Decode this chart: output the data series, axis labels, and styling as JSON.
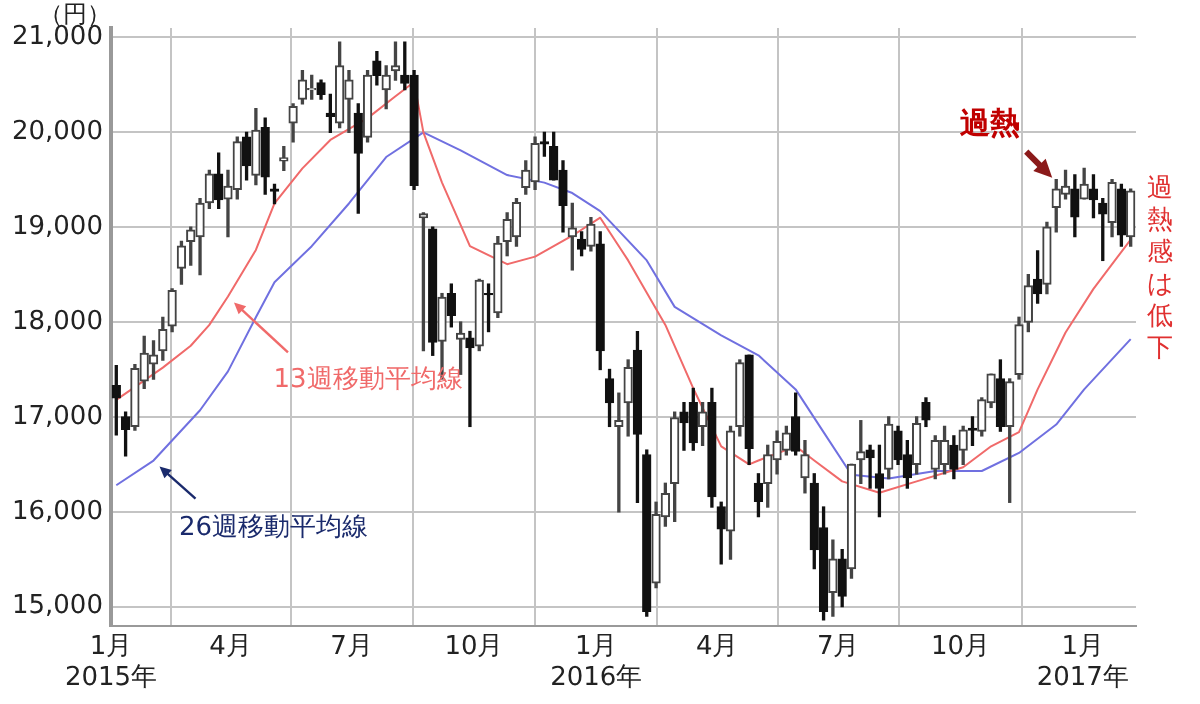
{
  "chart_data": {
    "type": "candlestick",
    "ylabel": "（円）",
    "x": [
      "2015-01-05",
      "2015-01-12",
      "2015-01-19",
      "2015-01-26",
      "2015-02-02",
      "2015-02-09",
      "2015-02-16",
      "2015-02-23",
      "2015-03-02",
      "2015-03-09",
      "2015-03-16",
      "2015-03-23",
      "2015-03-30",
      "2015-04-06",
      "2015-04-13",
      "2015-04-20",
      "2015-04-27",
      "2015-05-04",
      "2015-05-11",
      "2015-05-18",
      "2015-05-25",
      "2015-06-01",
      "2015-06-08",
      "2015-06-15",
      "2015-06-22",
      "2015-06-29",
      "2015-07-06",
      "2015-07-13",
      "2015-07-20",
      "2015-07-27",
      "2015-08-03",
      "2015-08-10",
      "2015-08-17",
      "2015-08-24",
      "2015-08-31",
      "2015-09-07",
      "2015-09-14",
      "2015-09-21",
      "2015-09-28",
      "2015-10-05",
      "2015-10-12",
      "2015-10-19",
      "2015-10-26",
      "2015-11-02",
      "2015-11-09",
      "2015-11-16",
      "2015-11-23",
      "2015-11-30",
      "2015-12-07",
      "2015-12-14",
      "2015-12-21",
      "2015-12-28",
      "2016-01-04",
      "2016-01-11",
      "2016-01-18",
      "2016-01-25",
      "2016-02-01",
      "2016-02-08",
      "2016-02-15",
      "2016-02-22",
      "2016-02-29",
      "2016-03-07",
      "2016-03-14",
      "2016-03-21",
      "2016-03-28",
      "2016-04-04",
      "2016-04-11",
      "2016-04-18",
      "2016-04-25",
      "2016-05-02",
      "2016-05-09",
      "2016-05-16",
      "2016-05-23",
      "2016-05-30",
      "2016-06-06",
      "2016-06-13",
      "2016-06-20",
      "2016-06-27",
      "2016-07-04",
      "2016-07-11",
      "2016-07-18",
      "2016-07-25",
      "2016-08-01",
      "2016-08-08",
      "2016-08-15",
      "2016-08-22",
      "2016-08-29",
      "2016-09-05",
      "2016-09-12",
      "2016-09-19",
      "2016-09-26",
      "2016-10-03",
      "2016-10-10",
      "2016-10-17",
      "2016-10-24",
      "2016-10-31",
      "2016-11-07",
      "2016-11-14",
      "2016-11-21",
      "2016-11-28",
      "2016-12-05",
      "2016-12-12",
      "2016-12-19",
      "2016-12-26",
      "2017-01-02",
      "2017-01-09",
      "2017-01-16",
      "2017-01-23",
      "2017-01-30",
      "2017-02-06"
    ],
    "ohlc": [
      [
        17330,
        17540,
        16810,
        17200
      ],
      [
        17000,
        17050,
        16590,
        16870
      ],
      [
        16900,
        17550,
        16860,
        17510
      ],
      [
        17380,
        17850,
        17300,
        17670
      ],
      [
        17560,
        17800,
        17400,
        17650
      ],
      [
        17700,
        18050,
        17600,
        17920
      ],
      [
        17960,
        18350,
        17900,
        18330
      ],
      [
        18570,
        18850,
        18400,
        18800
      ],
      [
        18850,
        19000,
        18600,
        18970
      ],
      [
        18900,
        19300,
        18500,
        19250
      ],
      [
        19260,
        19600,
        19200,
        19560
      ],
      [
        19560,
        19780,
        19200,
        19290
      ],
      [
        19300,
        19600,
        18900,
        19430
      ],
      [
        19400,
        19950,
        19300,
        19900
      ],
      [
        19950,
        20000,
        19500,
        19650
      ],
      [
        19550,
        20250,
        19450,
        20020
      ],
      [
        20050,
        20150,
        19350,
        19530
      ],
      [
        19400,
        19450,
        19250,
        19380
      ],
      [
        19700,
        19850,
        19600,
        19730
      ],
      [
        20100,
        20300,
        19900,
        20270
      ],
      [
        20350,
        20650,
        20300,
        20550
      ],
      [
        20450,
        20600,
        20350,
        20460
      ],
      [
        20520,
        20550,
        20350,
        20400
      ],
      [
        20200,
        20400,
        20000,
        20170
      ],
      [
        20100,
        20950,
        20050,
        20700
      ],
      [
        20350,
        20650,
        20000,
        20550
      ],
      [
        20200,
        20300,
        19150,
        19780
      ],
      [
        19950,
        20650,
        19900,
        20600
      ],
      [
        20750,
        20850,
        20500,
        20600
      ],
      [
        20450,
        20700,
        20250,
        20600
      ],
      [
        20650,
        20950,
        20550,
        20700
      ],
      [
        20600,
        20950,
        20450,
        20520
      ],
      [
        20600,
        20650,
        19400,
        19440
      ],
      [
        19100,
        19150,
        17700,
        19140
      ],
      [
        18980,
        19000,
        17650,
        17790
      ],
      [
        17800,
        18300,
        17400,
        18260
      ],
      [
        18300,
        18400,
        17950,
        18070
      ],
      [
        17820,
        18000,
        17450,
        17880
      ],
      [
        17830,
        17900,
        16900,
        17730
      ],
      [
        17750,
        18450,
        17700,
        18440
      ],
      [
        18300,
        18400,
        17900,
        18290
      ],
      [
        18100,
        18900,
        18050,
        18830
      ],
      [
        18850,
        19150,
        18700,
        19080
      ],
      [
        18900,
        19300,
        18800,
        19260
      ],
      [
        19420,
        19700,
        19350,
        19600
      ],
      [
        19480,
        19950,
        19400,
        19880
      ],
      [
        19900,
        20000,
        19750,
        19880
      ],
      [
        19850,
        20000,
        19500,
        19500
      ],
      [
        19600,
        19700,
        18950,
        19230
      ],
      [
        18900,
        19250,
        18550,
        18990
      ],
      [
        18870,
        18950,
        18700,
        18770
      ],
      [
        18800,
        19100,
        18750,
        19030
      ],
      [
        18820,
        18950,
        17500,
        17700
      ],
      [
        17400,
        17500,
        16900,
        17150
      ],
      [
        16900,
        17250,
        16000,
        16960
      ],
      [
        17150,
        17600,
        16800,
        17520
      ],
      [
        17700,
        17900,
        16100,
        16820
      ],
      [
        16600,
        16650,
        14900,
        14950
      ],
      [
        15250,
        16100,
        15200,
        15970
      ],
      [
        15950,
        16300,
        15850,
        16190
      ],
      [
        16300,
        17050,
        15900,
        16990
      ],
      [
        17050,
        17150,
        16650,
        16940
      ],
      [
        17150,
        17300,
        16650,
        16730
      ],
      [
        16900,
        17150,
        16700,
        17050
      ],
      [
        17150,
        17300,
        16050,
        16160
      ],
      [
        16050,
        16100,
        15450,
        15820
      ],
      [
        15800,
        16900,
        15500,
        16850
      ],
      [
        16900,
        17600,
        16800,
        17570
      ],
      [
        17650,
        17650,
        16500,
        16670
      ],
      [
        16300,
        16400,
        15950,
        16110
      ],
      [
        16300,
        16700,
        16050,
        16600
      ],
      [
        16550,
        16850,
        16400,
        16740
      ],
      [
        16650,
        16900,
        16600,
        16830
      ],
      [
        17000,
        17250,
        16600,
        16640
      ],
      [
        16360,
        16750,
        16200,
        16600
      ],
      [
        16300,
        16400,
        15400,
        15600
      ],
      [
        15830,
        16050,
        14860,
        14950
      ],
      [
        15150,
        15700,
        14900,
        15500
      ],
      [
        15500,
        15600,
        15000,
        15110
      ],
      [
        15400,
        16500,
        15300,
        16500
      ],
      [
        16550,
        16960,
        16300,
        16630
      ],
      [
        16650,
        16700,
        16250,
        16570
      ],
      [
        16400,
        16700,
        15950,
        16250
      ],
      [
        16450,
        17000,
        16350,
        16920
      ],
      [
        16850,
        16900,
        16500,
        16550
      ],
      [
        16600,
        16750,
        16250,
        16360
      ],
      [
        16500,
        17000,
        16400,
        16930
      ],
      [
        17150,
        17200,
        16900,
        16970
      ],
      [
        16450,
        16800,
        16350,
        16750
      ],
      [
        16500,
        16900,
        16400,
        16750
      ],
      [
        16700,
        16800,
        16350,
        16450
      ],
      [
        16650,
        16900,
        16500,
        16860
      ],
      [
        16880,
        17000,
        16700,
        16860
      ],
      [
        16850,
        17200,
        16800,
        17180
      ],
      [
        17150,
        17450,
        17100,
        17450
      ],
      [
        17400,
        17600,
        16850,
        16900
      ],
      [
        16900,
        17400,
        16100,
        17370
      ],
      [
        17450,
        18050,
        17400,
        17970
      ],
      [
        18000,
        18500,
        17900,
        18380
      ],
      [
        18450,
        18750,
        18200,
        18300
      ],
      [
        18400,
        19050,
        18300,
        19000
      ],
      [
        19210,
        19500,
        18950,
        19400
      ],
      [
        19350,
        19600,
        19300,
        19430
      ],
      [
        19400,
        19550,
        18900,
        19110
      ],
      [
        19300,
        19620,
        19300,
        19450
      ],
      [
        19400,
        19550,
        19100,
        19290
      ],
      [
        19250,
        19300,
        18650,
        19140
      ],
      [
        19050,
        19500,
        18900,
        19470
      ],
      [
        19400,
        19450,
        18800,
        18920
      ],
      [
        18900,
        19400,
        18800,
        19380
      ]
    ],
    "series": [
      {
        "type": "line",
        "name": "13週移動平均線",
        "color": "#f06a6a",
        "x": [
          "2015-01-05",
          "2015-02-09",
          "2015-03-02",
          "2015-03-16",
          "2015-03-30",
          "2015-04-20",
          "2015-05-04",
          "2015-05-25",
          "2015-06-15",
          "2015-07-13",
          "2015-08-03",
          "2015-08-17",
          "2015-08-24",
          "2015-09-07",
          "2015-09-28",
          "2015-10-26",
          "2015-11-16",
          "2015-12-14",
          "2016-01-04",
          "2016-01-25",
          "2016-02-22",
          "2016-03-14",
          "2016-04-04",
          "2016-04-25",
          "2016-05-02",
          "2016-05-30",
          "2016-06-13",
          "2016-07-04",
          "2016-08-01",
          "2016-08-29",
          "2016-10-03",
          "2016-10-24",
          "2016-11-14",
          "2016-11-28",
          "2016-12-19",
          "2017-01-09",
          "2017-02-06"
        ],
        "values": [
          17180,
          17520,
          17750,
          17970,
          18270,
          18760,
          19250,
          19620,
          19920,
          20150,
          20380,
          20530,
          20000,
          19470,
          18800,
          18610,
          18690,
          18910,
          19100,
          18650,
          17970,
          17300,
          16690,
          16500,
          16540,
          16690,
          16540,
          16320,
          16200,
          16320,
          16470,
          16690,
          16840,
          17290,
          17890,
          18350,
          18870
        ]
      },
      {
        "type": "line",
        "name": "26週移動平均線",
        "color": "#7070e0",
        "x": [
          "2015-01-05",
          "2015-02-02",
          "2015-03-09",
          "2015-03-30",
          "2015-04-20",
          "2015-05-04",
          "2015-06-01",
          "2015-06-29",
          "2015-07-27",
          "2015-08-24",
          "2015-09-21",
          "2015-10-26",
          "2015-11-23",
          "2015-12-14",
          "2016-01-04",
          "2016-02-08",
          "2016-02-29",
          "2016-04-04",
          "2016-05-02",
          "2016-05-30",
          "2016-06-20",
          "2016-07-11",
          "2016-08-08",
          "2016-09-12",
          "2016-10-17",
          "2016-11-14",
          "2016-12-12",
          "2017-01-02",
          "2017-02-06"
        ],
        "values": [
          16280,
          16540,
          17070,
          17480,
          18050,
          18420,
          18800,
          19250,
          19740,
          20000,
          19810,
          19550,
          19470,
          19360,
          19170,
          18650,
          18160,
          17860,
          17650,
          17290,
          16840,
          16390,
          16350,
          16430,
          16430,
          16620,
          16920,
          17290,
          17820
        ]
      }
    ],
    "annotations": [
      {
        "text": "過熱",
        "x": "2016-12-12",
        "y": 19480
      },
      "過熱感は低下"
    ],
    "xlim": [
      "2015-01-01",
      "2017-02-10"
    ],
    "xticks": [
      {
        "value": "2015-01-01",
        "label": "1月\n2015年"
      },
      {
        "value": "2015-04-01",
        "label": "4月"
      },
      {
        "value": "2015-07-01",
        "label": "7月"
      },
      {
        "value": "2015-10-01",
        "label": "10月"
      },
      {
        "value": "2016-01-01",
        "label": "1月\n2016年"
      },
      {
        "value": "2016-04-01",
        "label": "4月"
      },
      {
        "value": "2016-07-01",
        "label": "7月"
      },
      {
        "value": "2016-10-01",
        "label": "10月"
      },
      {
        "value": "2017-01-01",
        "label": "1月\n2017年"
      }
    ],
    "ylim": [
      14800,
      21100
    ],
    "yticks": [
      {
        "value": 15000,
        "label": "15,000"
      },
      {
        "value": 16000,
        "label": "16,000"
      },
      {
        "value": 17000,
        "label": "17,000"
      },
      {
        "value": 18000,
        "label": "18,000"
      },
      {
        "value": 19000,
        "label": "19,000"
      },
      {
        "value": 20000,
        "label": "20,000"
      },
      {
        "value": 21000,
        "label": "21,000"
      }
    ],
    "grid": true,
    "legend": "left"
  }
}
